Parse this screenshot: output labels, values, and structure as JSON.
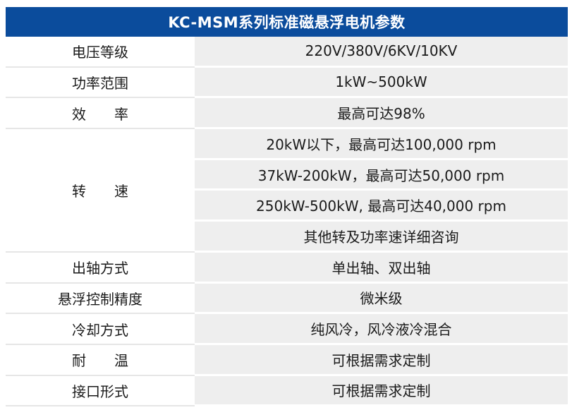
{
  "title": "KC-MSM系列标准磁悬浮电机参数",
  "rows": [
    {
      "label": "电压等级",
      "values": [
        "220V/380V/6KV/10KV"
      ]
    },
    {
      "label": "功率范围",
      "values": [
        "1kW~500kW"
      ]
    },
    {
      "label": "效　　率",
      "values": [
        "最高可达98%"
      ]
    },
    {
      "label": "转　　速",
      "values": [
        "20kW以下，最高可达100,000 rpm",
        "37kW-200kW，最高可达50,000 rpm",
        "250kW-500kW, 最高可达40,000 rpm",
        "其他转及功率速详细咨询"
      ]
    },
    {
      "label": "出轴方式",
      "values": [
        "单出轴、双出轴"
      ]
    },
    {
      "label": "悬浮控制精度",
      "values": [
        "微米级"
      ]
    },
    {
      "label": "冷却方式",
      "values": [
        "纯风冷，风冷液冷混合"
      ]
    },
    {
      "label": "耐　　温",
      "values": [
        "可根据需求定制"
      ]
    },
    {
      "label": "接口形式",
      "values": [
        "可根据需求定制"
      ]
    }
  ],
  "colors": {
    "header_bg": "#0b4c9c",
    "value_bg": "#eeeeee"
  }
}
